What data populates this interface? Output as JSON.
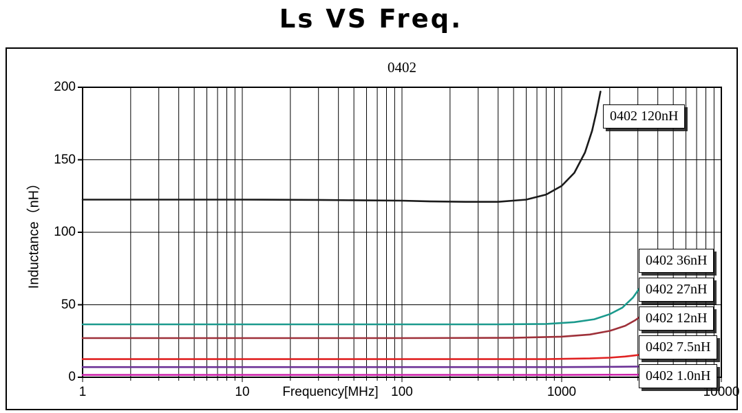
{
  "page": {
    "title": "Ls VS Freq."
  },
  "chart_data": {
    "type": "line",
    "title": "Ls VS Freq.",
    "subtitle": "0402",
    "xlabel": "Frequency[MHz]",
    "ylabel": "Inductance（nH）",
    "x_scale": "log",
    "xlim": [
      1,
      10000
    ],
    "ylim": [
      0,
      200
    ],
    "x_ticks": [
      "1",
      "10",
      "100",
      "1000",
      "10000"
    ],
    "y_ticks": [
      "0",
      "50",
      "100",
      "150",
      "200"
    ],
    "grid": "vertical log minor+major lines, horizontal major lines",
    "legend_position": "boxed labels at right edge of plot",
    "series": [
      {
        "name": "0402 120nH",
        "label": "0402 120nH",
        "color": "#1a1a1a",
        "points": [
          [
            1,
            122.5
          ],
          [
            3,
            122.5
          ],
          [
            10,
            122.5
          ],
          [
            30,
            122.3
          ],
          [
            60,
            122
          ],
          [
            100,
            121.8
          ],
          [
            150,
            121.3
          ],
          [
            250,
            121
          ],
          [
            400,
            121
          ],
          [
            600,
            122.5
          ],
          [
            800,
            126
          ],
          [
            1000,
            132
          ],
          [
            1200,
            141
          ],
          [
            1400,
            155
          ],
          [
            1550,
            170
          ],
          [
            1650,
            183
          ],
          [
            1750,
            197
          ]
        ]
      },
      {
        "name": "0402 36nH",
        "label": "0402 36nH",
        "color": "#1b9a8d",
        "points": [
          [
            1,
            36.5
          ],
          [
            10,
            36.5
          ],
          [
            100,
            36.5
          ],
          [
            400,
            36.5
          ],
          [
            800,
            36.8
          ],
          [
            1200,
            38
          ],
          [
            1600,
            40
          ],
          [
            2000,
            43.5
          ],
          [
            2400,
            48
          ],
          [
            2800,
            55
          ],
          [
            3100,
            62
          ],
          [
            3300,
            68
          ]
        ]
      },
      {
        "name": "0402 27nH",
        "label": "0402 27nH",
        "color": "#9e3039",
        "points": [
          [
            1,
            27
          ],
          [
            10,
            27
          ],
          [
            100,
            27
          ],
          [
            500,
            27.2
          ],
          [
            1000,
            28
          ],
          [
            1500,
            29.5
          ],
          [
            2000,
            32
          ],
          [
            2500,
            35.5
          ],
          [
            2900,
            39.5
          ],
          [
            3300,
            44
          ]
        ]
      },
      {
        "name": "0402 12nH",
        "label": "0402 12nH",
        "color": "#e02222",
        "points": [
          [
            1,
            12.5
          ],
          [
            10,
            12.5
          ],
          [
            100,
            12.5
          ],
          [
            800,
            12.5
          ],
          [
            1500,
            13
          ],
          [
            2000,
            13.5
          ],
          [
            2500,
            14.3
          ],
          [
            3000,
            15.3
          ],
          [
            3300,
            16
          ]
        ]
      },
      {
        "name": "0402 7.5nH",
        "label": "0402 7.5nH",
        "color": "#6a3096",
        "points": [
          [
            1,
            7
          ],
          [
            100,
            7
          ],
          [
            1000,
            7
          ],
          [
            2000,
            7.2
          ],
          [
            3000,
            7.4
          ],
          [
            3400,
            7.6
          ]
        ]
      },
      {
        "name": "0402 1.0nH",
        "label": "0402 1.0nH",
        "color": "#cc22aa",
        "points": [
          [
            1,
            1.6
          ],
          [
            100,
            1.6
          ],
          [
            1000,
            1.6
          ],
          [
            3400,
            1.8
          ]
        ]
      }
    ]
  }
}
